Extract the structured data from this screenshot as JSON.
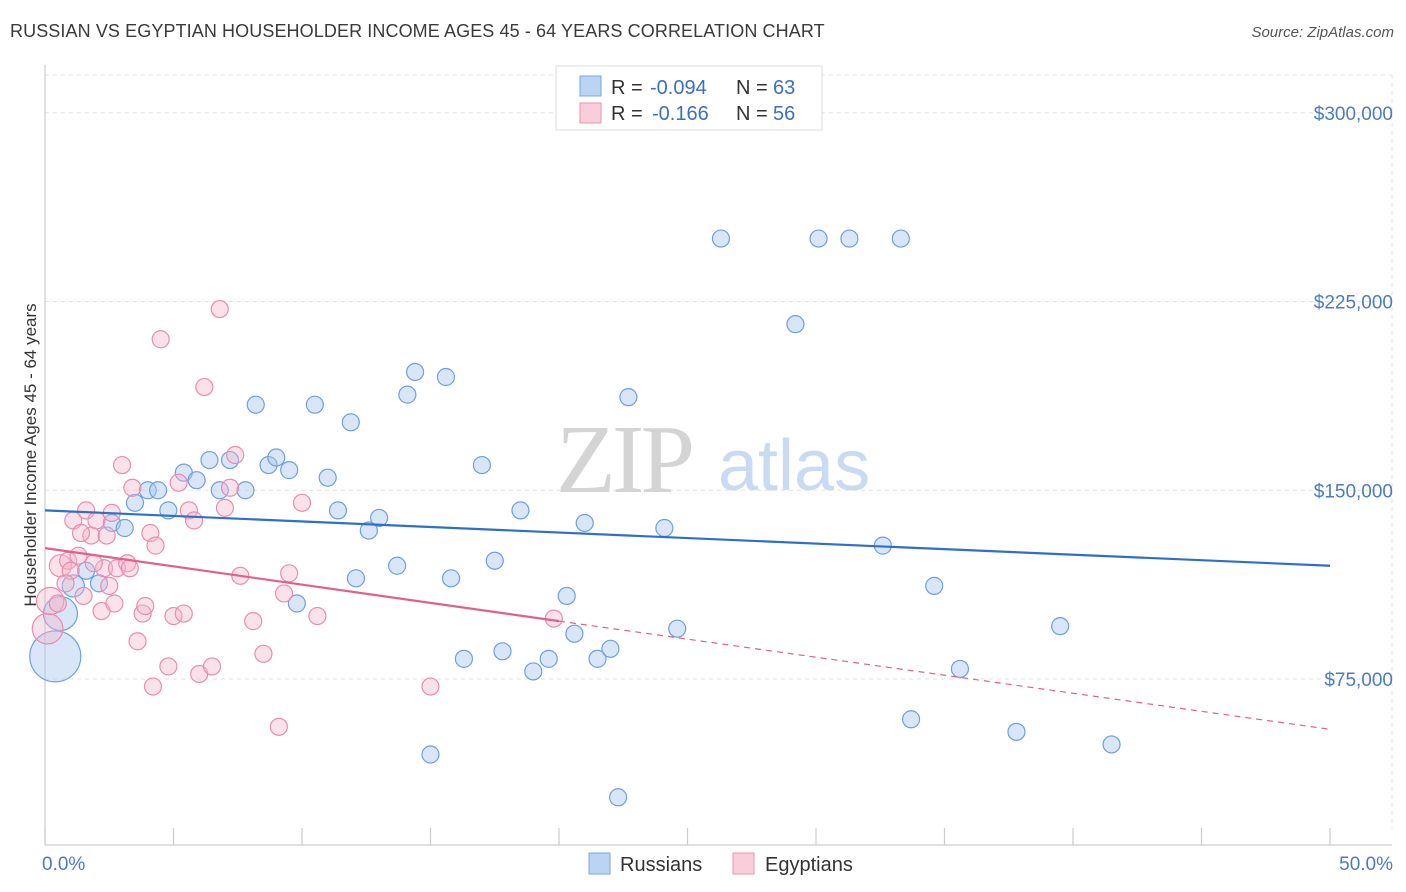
{
  "header": {
    "title": "RUSSIAN VS EGYPTIAN HOUSEHOLDER INCOME AGES 45 - 64 YEARS CORRELATION CHART",
    "source": "Source: ZipAtlas.com"
  },
  "watermark": {
    "zip": "ZIP",
    "atlas": "atlas"
  },
  "legend": {
    "r_label": "R =",
    "n_label": "N =",
    "rows": [
      {
        "r": "-0.094",
        "n": "63",
        "color": "#a9c8f0"
      },
      {
        "r": "-0.166",
        "n": "56",
        "color": "#f6b6cb"
      }
    ]
  },
  "bottom_legend": [
    {
      "label": "Russians",
      "color": "#a9c8f0"
    },
    {
      "label": "Egyptians",
      "color": "#f6b6cb"
    }
  ],
  "chart_data": {
    "type": "scatter",
    "ylabel": "Householder Income Ages 45 - 64 years",
    "xlim": [
      0,
      50
    ],
    "ylim": [
      15000,
      315000
    ],
    "x_tick_labels": [
      "0.0%",
      "50.0%"
    ],
    "y_ticks": [
      75000,
      150000,
      225000,
      300000
    ],
    "y_tick_labels": [
      "$75,000",
      "$150,000",
      "$225,000",
      "$300,000"
    ],
    "grid": true,
    "colors": {
      "russians": "#4a86d8",
      "egyptians": "#e97aa2",
      "russians_line": "#2f6fcc",
      "egyptians_line": "#e0608e"
    },
    "series": [
      {
        "name": "Russians",
        "trend": {
          "x": [
            0,
            50
          ],
          "y": [
            142000,
            120000
          ]
        },
        "points": [
          [
            0.4,
            84000,
            3
          ],
          [
            0.6,
            101000,
            2
          ],
          [
            1.1,
            112000,
            1.3
          ],
          [
            2.1,
            113000,
            1
          ],
          [
            1.6,
            118000,
            1
          ],
          [
            2.6,
            137000,
            1
          ],
          [
            3.1,
            135000,
            1
          ],
          [
            3.5,
            145000,
            1
          ],
          [
            4.0,
            150000,
            1
          ],
          [
            4.4,
            150000,
            1
          ],
          [
            4.8,
            142000,
            1
          ],
          [
            5.4,
            157000,
            1
          ],
          [
            5.9,
            154000,
            1
          ],
          [
            6.4,
            162000,
            1
          ],
          [
            6.8,
            150000,
            1
          ],
          [
            7.2,
            162000,
            1
          ],
          [
            7.8,
            150000,
            1
          ],
          [
            8.2,
            184000,
            1
          ],
          [
            8.7,
            160000,
            1
          ],
          [
            9.0,
            163000,
            1
          ],
          [
            9.5,
            158000,
            1
          ],
          [
            9.8,
            105000,
            1
          ],
          [
            10.5,
            184000,
            1
          ],
          [
            11.0,
            155000,
            1
          ],
          [
            11.4,
            142000,
            1
          ],
          [
            11.9,
            177000,
            1
          ],
          [
            12.1,
            115000,
            1
          ],
          [
            12.6,
            134000,
            1
          ],
          [
            13.0,
            139000,
            1
          ],
          [
            13.7,
            120000,
            1
          ],
          [
            14.1,
            188000,
            1
          ],
          [
            14.4,
            197000,
            1
          ],
          [
            15.0,
            45000,
            1
          ],
          [
            15.6,
            195000,
            1
          ],
          [
            15.8,
            115000,
            1
          ],
          [
            16.3,
            83000,
            1
          ],
          [
            17.0,
            160000,
            1
          ],
          [
            17.5,
            122000,
            1
          ],
          [
            17.8,
            86000,
            1
          ],
          [
            18.5,
            142000,
            1
          ],
          [
            19.0,
            78000,
            1
          ],
          [
            19.6,
            83000,
            1
          ],
          [
            20.3,
            108000,
            1
          ],
          [
            20.6,
            93000,
            1
          ],
          [
            21.0,
            137000,
            1
          ],
          [
            21.5,
            83000,
            1
          ],
          [
            22.0,
            87000,
            1
          ],
          [
            22.3,
            28000,
            1
          ],
          [
            22.7,
            187000,
            1
          ],
          [
            24.1,
            135000,
            1
          ],
          [
            24.6,
            95000,
            1
          ],
          [
            26.3,
            250000,
            1
          ],
          [
            29.2,
            216000,
            1
          ],
          [
            30.1,
            250000,
            1
          ],
          [
            31.3,
            250000,
            1
          ],
          [
            32.6,
            128000,
            1
          ],
          [
            33.3,
            250000,
            1
          ],
          [
            33.7,
            59000,
            1
          ],
          [
            34.6,
            112000,
            1
          ],
          [
            35.6,
            79000,
            1
          ],
          [
            37.8,
            54000,
            1
          ],
          [
            39.5,
            96000,
            1
          ],
          [
            41.5,
            49000,
            1
          ]
        ]
      },
      {
        "name": "Egyptians",
        "trend": {
          "x": [
            0,
            20
          ],
          "y": [
            127000,
            98000
          ]
        },
        "trend_dashed": {
          "x": [
            20,
            50
          ],
          "y": [
            98000,
            55000
          ]
        },
        "points": [
          [
            0.1,
            95000,
            1.8
          ],
          [
            0.2,
            106000,
            1.6
          ],
          [
            0.5,
            105000,
            1
          ],
          [
            0.6,
            120000,
            1.3
          ],
          [
            0.9,
            122000,
            1
          ],
          [
            1.0,
            118000,
            1
          ],
          [
            1.1,
            138000,
            1
          ],
          [
            1.3,
            124000,
            1
          ],
          [
            1.5,
            108000,
            1
          ],
          [
            1.6,
            142000,
            1
          ],
          [
            1.8,
            132000,
            1
          ],
          [
            2.0,
            138000,
            1
          ],
          [
            2.2,
            102000,
            1
          ],
          [
            2.3,
            119000,
            1
          ],
          [
            2.5,
            112000,
            1
          ],
          [
            2.6,
            141000,
            1
          ],
          [
            2.8,
            119000,
            1
          ],
          [
            3.0,
            160000,
            1
          ],
          [
            3.2,
            121000,
            1
          ],
          [
            3.4,
            151000,
            1
          ],
          [
            3.6,
            90000,
            1
          ],
          [
            3.8,
            101000,
            1
          ],
          [
            3.9,
            104000,
            1
          ],
          [
            4.1,
            133000,
            1
          ],
          [
            4.3,
            128000,
            1
          ],
          [
            4.5,
            210000,
            1
          ],
          [
            4.8,
            80000,
            1
          ],
          [
            5.0,
            100000,
            1
          ],
          [
            5.2,
            153000,
            1
          ],
          [
            5.4,
            101000,
            1
          ],
          [
            5.6,
            142000,
            1
          ],
          [
            5.8,
            138000,
            1
          ],
          [
            6.0,
            77000,
            1
          ],
          [
            6.2,
            191000,
            1
          ],
          [
            6.5,
            80000,
            1
          ],
          [
            6.8,
            222000,
            1
          ],
          [
            7.0,
            143000,
            1
          ],
          [
            7.2,
            151000,
            1
          ],
          [
            7.4,
            164000,
            1
          ],
          [
            7.6,
            116000,
            1
          ],
          [
            8.1,
            98000,
            1
          ],
          [
            8.5,
            85000,
            1
          ],
          [
            9.1,
            56000,
            1
          ],
          [
            9.3,
            109000,
            1
          ],
          [
            9.5,
            117000,
            1
          ],
          [
            10.0,
            145000,
            1
          ],
          [
            10.6,
            100000,
            1
          ],
          [
            15.0,
            72000,
            1
          ],
          [
            19.8,
            99000,
            1
          ],
          [
            4.2,
            72000,
            1
          ],
          [
            3.3,
            119000,
            1
          ],
          [
            2.7,
            105000,
            1
          ],
          [
            1.4,
            133000,
            1
          ],
          [
            0.8,
            113000,
            1
          ],
          [
            1.9,
            121000,
            1
          ],
          [
            2.4,
            132000,
            1
          ]
        ]
      }
    ]
  }
}
